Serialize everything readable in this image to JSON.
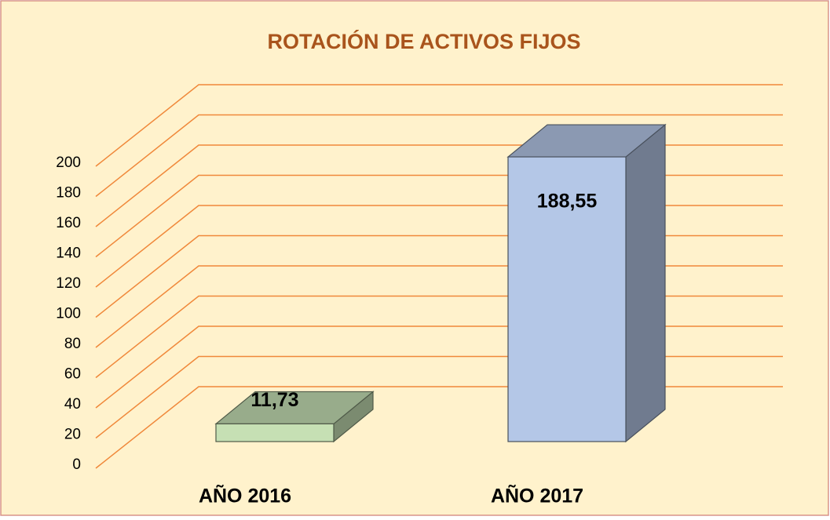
{
  "chart_data": {
    "type": "bar3d",
    "title": "ROTACIÓN DE ACTIVOS FIJOS",
    "categories": [
      "AÑO 2016",
      "AÑO 2017"
    ],
    "values": [
      11.73,
      188.55
    ],
    "value_labels": [
      "11,73",
      "188,55"
    ],
    "colors": [
      "#c6e0b4",
      "#b4c7e7"
    ],
    "ylim": [
      0,
      200
    ],
    "yticks": [
      0,
      20,
      40,
      60,
      80,
      100,
      120,
      140,
      160,
      180,
      200
    ],
    "grid": true
  }
}
